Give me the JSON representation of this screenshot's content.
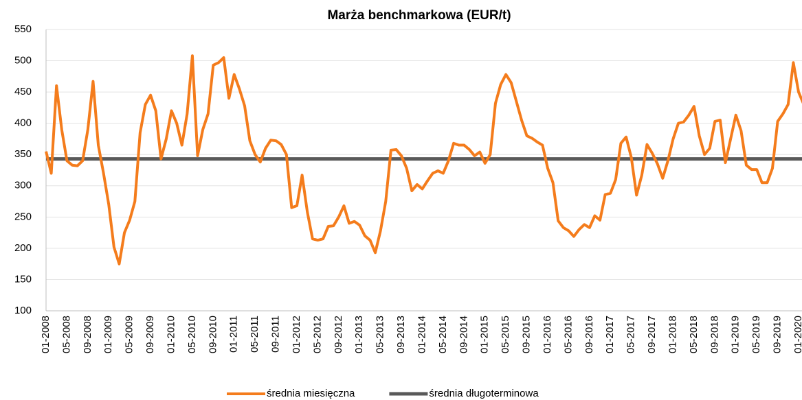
{
  "chart_data": {
    "type": "line",
    "title": "Marża benchmarkowa (EUR/t)",
    "categories": [
      "01-2008",
      null,
      null,
      null,
      "05-2008",
      null,
      null,
      null,
      "09-2008",
      null,
      null,
      null,
      "01-2009",
      null,
      null,
      null,
      "05-2009",
      null,
      null,
      null,
      "09-2009",
      null,
      null,
      null,
      "01-2010",
      null,
      null,
      null,
      "05-2010",
      null,
      null,
      null,
      "09-2010",
      null,
      null,
      null,
      "01-2011",
      null,
      null,
      null,
      "05-2011",
      null,
      null,
      null,
      "09-2011",
      null,
      null,
      null,
      "01-2012",
      null,
      null,
      null,
      "05-2012",
      null,
      null,
      null,
      "09-2012",
      null,
      null,
      null,
      "01-2013",
      null,
      null,
      null,
      "05-2013",
      null,
      null,
      null,
      "09-2013",
      null,
      null,
      null,
      "01-2014",
      null,
      null,
      null,
      "05-2014",
      null,
      null,
      null,
      "09-2014",
      null,
      null,
      null,
      "01-2015",
      null,
      null,
      null,
      "05-2015",
      null,
      null,
      null,
      "09-2015",
      null,
      null,
      null,
      "01-2016",
      null,
      null,
      null,
      "05-2016",
      null,
      null,
      null,
      "09-2016",
      null,
      null,
      null,
      "01-2017",
      null,
      null,
      null,
      "05-2017",
      null,
      null,
      null,
      "09-2017",
      null,
      null,
      null,
      "01-2018",
      null,
      null,
      null,
      "05-2018",
      null,
      null,
      null,
      "09-2018",
      null,
      null,
      null,
      "01-2019",
      null,
      null,
      null,
      "05-2019",
      null,
      null,
      null,
      "09-2019",
      null,
      null,
      null,
      "01-2020",
      null
    ],
    "series": [
      {
        "name": "średnia miesięczna",
        "color": "#f47c1c",
        "values": [
          355,
          320,
          460,
          390,
          340,
          333,
          332,
          340,
          390,
          467,
          365,
          320,
          270,
          202,
          175,
          225,
          245,
          275,
          385,
          430,
          445,
          420,
          343,
          375,
          420,
          400,
          365,
          415,
          508,
          348,
          390,
          415,
          493,
          497,
          505,
          440,
          478,
          455,
          428,
          372,
          350,
          338,
          360,
          373,
          372,
          366,
          350,
          265,
          268,
          317,
          258,
          215,
          213,
          215,
          235,
          236,
          250,
          268,
          240,
          243,
          237,
          220,
          213,
          193,
          228,
          275,
          357,
          358,
          348,
          328,
          292,
          302,
          295,
          308,
          320,
          324,
          320,
          340,
          368,
          365,
          365,
          358,
          348,
          354,
          336,
          350,
          432,
          462,
          478,
          465,
          435,
          405,
          380,
          376,
          370,
          365,
          328,
          305,
          244,
          233,
          228,
          219,
          230,
          238,
          233,
          252,
          245,
          286,
          288,
          310,
          368,
          378,
          345,
          285,
          317,
          366,
          352,
          335,
          312,
          340,
          375,
          400,
          402,
          413,
          427,
          380,
          350,
          360,
          403,
          405,
          337,
          375,
          413,
          388,
          333,
          326,
          326,
          305,
          305,
          328,
          403,
          415,
          430,
          497,
          450,
          430
        ]
      }
    ],
    "hlines": [
      {
        "name": "średnia długoterminowa",
        "color": "#595959",
        "value": 343
      }
    ],
    "ylim": [
      100,
      550
    ],
    "yticks": [
      100,
      150,
      200,
      250,
      300,
      350,
      400,
      450,
      500,
      550
    ],
    "grid": true
  }
}
